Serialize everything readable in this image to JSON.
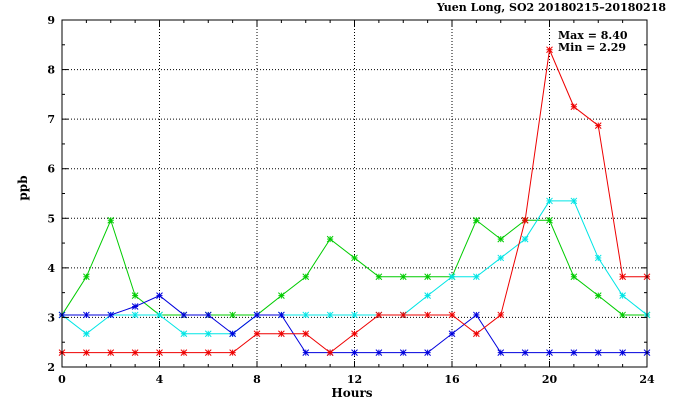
{
  "chart_data": {
    "type": "line",
    "title": "Yuen Long, SO2 20180215–20180218",
    "stats": {
      "max": "Max = 8.40",
      "min": "Min = 2.29"
    },
    "xlabel": "Hours",
    "ylabel": "ppb",
    "xlim": [
      0,
      24
    ],
    "ylim": [
      2,
      9
    ],
    "xticks": [
      0,
      4,
      8,
      12,
      16,
      20,
      24
    ],
    "yticks": [
      2,
      3,
      4,
      5,
      6,
      7,
      8,
      9
    ],
    "grid": true,
    "x": [
      0,
      1,
      2,
      3,
      4,
      5,
      6,
      7,
      8,
      9,
      10,
      11,
      12,
      13,
      14,
      15,
      16,
      17,
      18,
      19,
      20,
      21,
      22,
      23,
      24
    ],
    "series": [
      {
        "color": "#00cc00",
        "values": [
          3.05,
          3.82,
          4.96,
          3.44,
          3.05,
          3.05,
          3.05,
          3.05,
          3.05,
          3.44,
          3.82,
          4.58,
          4.2,
          3.82,
          3.82,
          3.82,
          3.82,
          4.96,
          4.58,
          4.96,
          4.96,
          3.82,
          3.44,
          3.05,
          3.05
        ]
      },
      {
        "color": "#00e5e5",
        "values": [
          3.05,
          2.67,
          3.05,
          3.05,
          3.05,
          2.67,
          2.67,
          2.67,
          3.05,
          3.05,
          3.05,
          3.05,
          3.05,
          3.05,
          3.05,
          3.44,
          3.82,
          3.82,
          4.2,
          4.58,
          5.35,
          5.35,
          4.2,
          3.44,
          3.05
        ]
      },
      {
        "color": "#0000dd",
        "values": [
          3.05,
          3.05,
          3.05,
          3.22,
          3.44,
          3.05,
          3.05,
          2.67,
          3.05,
          3.05,
          2.29,
          2.29,
          2.29,
          2.29,
          2.29,
          2.29,
          2.67,
          3.05,
          2.29,
          2.29,
          2.29,
          2.29,
          2.29,
          2.29,
          2.29
        ]
      },
      {
        "color": "#ee0000",
        "values": [
          2.29,
          2.29,
          2.29,
          2.29,
          2.29,
          2.29,
          2.29,
          2.29,
          2.67,
          2.67,
          2.67,
          2.29,
          2.67,
          3.05,
          3.05,
          3.05,
          3.05,
          2.67,
          3.05,
          4.96,
          8.4,
          7.25,
          6.87,
          3.82,
          3.82
        ]
      }
    ]
  }
}
